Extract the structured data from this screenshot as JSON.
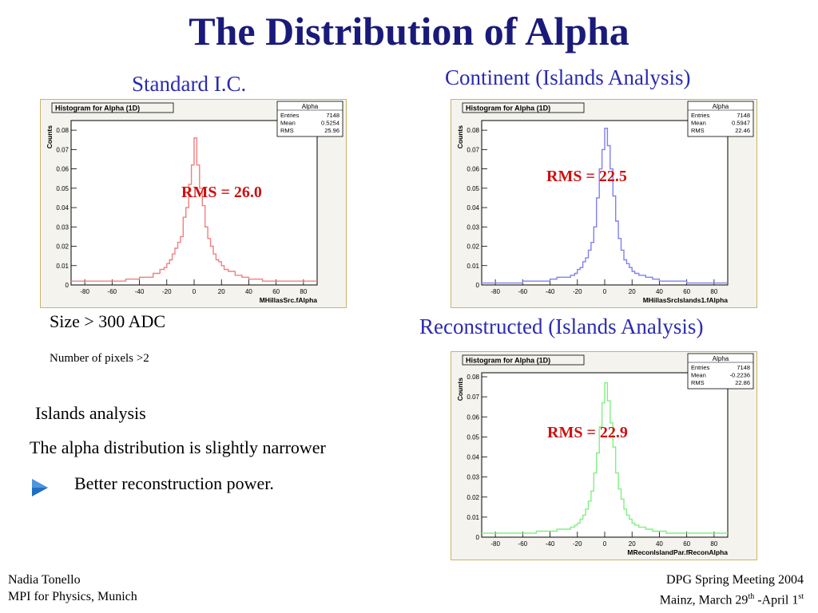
{
  "title": "The Distribution of Alpha",
  "captions": {
    "standard": "Standard I.C.",
    "continent": "Continent (Islands Analysis)",
    "reconstructed": "Reconstructed (Islands Analysis)"
  },
  "notes": {
    "size_cut": "Size > 300 ADC",
    "pixels_cut": "Number of pixels >2",
    "islands": "Islands analysis",
    "narrower": "The alpha distribution is slightly narrower",
    "bullet": "Better reconstruction  power."
  },
  "footer": {
    "author": "Nadia Tonello",
    "institute": "MPI for Physics, Munich",
    "meeting": "DPG Spring Meeting 2004",
    "place_prefix": "Mainz, March 29",
    "th_sup": "th",
    "place_middle": " -April 1",
    "st_sup": "st"
  },
  "colors": {
    "title": "#1a1a7a",
    "caption": "#2b2bb0",
    "rms": "#cc1111",
    "bullet": "#1f6fc4"
  },
  "chart_data": [
    {
      "type": "line",
      "title": "Histogram for Alpha (1D)",
      "xlabel": "MHillasSrc.fAlpha",
      "ylabel": "Counts",
      "color": "#f08080",
      "xlim": [
        -90,
        90
      ],
      "ylim": [
        0,
        0.085
      ],
      "xticks": [
        "-80",
        "-60",
        "-40",
        "-20",
        "0",
        "20",
        "40",
        "60",
        "80"
      ],
      "yticks": [
        "0",
        "0.01",
        "0.02",
        "0.03",
        "0.04",
        "0.05",
        "0.06",
        "0.07",
        "0.08"
      ],
      "stats": {
        "name": "Alpha",
        "rows": [
          [
            "Entries",
            "7148"
          ],
          [
            "Mean",
            "0.5254"
          ],
          [
            "RMS",
            "25.96"
          ]
        ]
      },
      "annotation": "RMS = 26.0",
      "x": [
        -90,
        -80,
        -70,
        -60,
        -50,
        -45,
        -40,
        -35,
        -30,
        -25,
        -22,
        -20,
        -18,
        -16,
        -14,
        -12,
        -10,
        -8,
        -6,
        -4,
        -2,
        0,
        2,
        4,
        6,
        8,
        10,
        12,
        14,
        16,
        18,
        20,
        22,
        25,
        30,
        35,
        40,
        45,
        50,
        60,
        70,
        80,
        90
      ],
      "y": [
        0.002,
        0.002,
        0.002,
        0.002,
        0.003,
        0.003,
        0.004,
        0.004,
        0.006,
        0.008,
        0.009,
        0.011,
        0.013,
        0.016,
        0.019,
        0.022,
        0.025,
        0.035,
        0.04,
        0.052,
        0.062,
        0.076,
        0.062,
        0.05,
        0.041,
        0.03,
        0.024,
        0.02,
        0.016,
        0.013,
        0.012,
        0.01,
        0.008,
        0.007,
        0.005,
        0.004,
        0.003,
        0.003,
        0.002,
        0.002,
        0.002,
        0.002,
        0.002
      ]
    },
    {
      "type": "line",
      "title": "Histogram for Alpha (1D)",
      "xlabel": "MHillasSrcIslands1.fAlpha",
      "ylabel": "Counts",
      "color": "#8080f0",
      "xlim": [
        -90,
        90
      ],
      "ylim": [
        0,
        0.085
      ],
      "xticks": [
        "-80",
        "-60",
        "-40",
        "-20",
        "0",
        "20",
        "40",
        "60",
        "80"
      ],
      "yticks": [
        "0",
        "0.01",
        "0.02",
        "0.03",
        "0.04",
        "0.05",
        "0.06",
        "0.07",
        "0.08"
      ],
      "stats": {
        "name": "Alpha",
        "rows": [
          [
            "Entries",
            "7148"
          ],
          [
            "Mean",
            "0.5947"
          ],
          [
            "RMS",
            "22.46"
          ]
        ]
      },
      "annotation": "RMS = 22.5",
      "x": [
        -90,
        -80,
        -70,
        -60,
        -50,
        -45,
        -40,
        -35,
        -30,
        -25,
        -22,
        -20,
        -18,
        -16,
        -14,
        -12,
        -10,
        -8,
        -6,
        -4,
        -2,
        0,
        2,
        4,
        6,
        8,
        10,
        12,
        14,
        16,
        18,
        20,
        22,
        25,
        30,
        35,
        40,
        45,
        50,
        60,
        70,
        80,
        90
      ],
      "y": [
        0.001,
        0.001,
        0.001,
        0.002,
        0.002,
        0.002,
        0.003,
        0.004,
        0.004,
        0.005,
        0.006,
        0.008,
        0.009,
        0.012,
        0.014,
        0.018,
        0.022,
        0.03,
        0.045,
        0.06,
        0.07,
        0.081,
        0.072,
        0.06,
        0.046,
        0.033,
        0.024,
        0.018,
        0.013,
        0.011,
        0.009,
        0.007,
        0.006,
        0.005,
        0.004,
        0.003,
        0.002,
        0.002,
        0.002,
        0.001,
        0.001,
        0.001,
        0.001
      ]
    },
    {
      "type": "line",
      "title": "Histogram for Alpha (1D)",
      "xlabel": "MReconIslandPar.fReconAlpha",
      "ylabel": "Counts",
      "color": "#80f080",
      "xlim": [
        -90,
        90
      ],
      "ylim": [
        0,
        0.082
      ],
      "xticks": [
        "-80",
        "-60",
        "-40",
        "-20",
        "0",
        "20",
        "40",
        "60",
        "80"
      ],
      "yticks": [
        "0",
        "0.01",
        "0.02",
        "0.03",
        "0.04",
        "0.05",
        "0.06",
        "0.07",
        "0.08"
      ],
      "stats": {
        "name": "Alpha",
        "rows": [
          [
            "Entries",
            "7148"
          ],
          [
            "Mean",
            "-0.2236"
          ],
          [
            "RMS",
            "22.86"
          ]
        ]
      },
      "annotation": "RMS = 22.9",
      "x": [
        -90,
        -80,
        -70,
        -60,
        -50,
        -45,
        -40,
        -35,
        -30,
        -25,
        -22,
        -20,
        -18,
        -16,
        -14,
        -12,
        -10,
        -8,
        -6,
        -4,
        -2,
        0,
        2,
        4,
        6,
        8,
        10,
        12,
        14,
        16,
        18,
        20,
        22,
        25,
        30,
        35,
        40,
        45,
        50,
        60,
        70,
        80,
        90
      ],
      "y": [
        0.002,
        0.002,
        0.002,
        0.002,
        0.003,
        0.003,
        0.003,
        0.004,
        0.004,
        0.005,
        0.006,
        0.007,
        0.009,
        0.011,
        0.014,
        0.018,
        0.023,
        0.032,
        0.042,
        0.055,
        0.067,
        0.077,
        0.068,
        0.057,
        0.045,
        0.032,
        0.024,
        0.019,
        0.014,
        0.011,
        0.009,
        0.007,
        0.006,
        0.005,
        0.004,
        0.003,
        0.003,
        0.002,
        0.002,
        0.002,
        0.002,
        0.002,
        0.002
      ]
    }
  ]
}
